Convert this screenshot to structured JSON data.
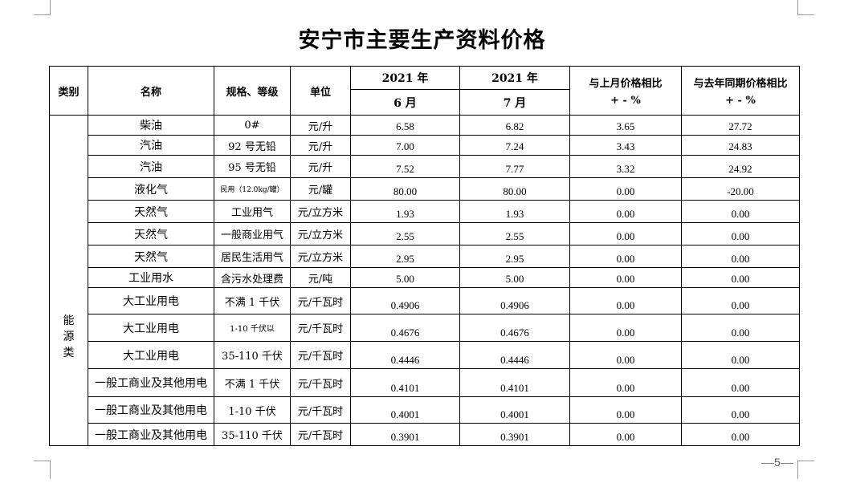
{
  "title": "安宁市主要生产资料价格",
  "headers": {
    "category": "类别",
    "name": "名称",
    "spec": "规格、等级",
    "unit": "单位",
    "prev_year": "2021 年",
    "prev_month": "6 月",
    "cur_year": "2021 年",
    "cur_month": "7 月",
    "mom_line1": "与上月价格相比",
    "mom_line2": "+ - %",
    "yoy_line1": "与去年同期价格相比",
    "yoy_line2": "+ - %"
  },
  "category": "能源类",
  "rows": [
    {
      "name": "柴油",
      "spec": "0#",
      "unit": "元/升",
      "prev": "6.58",
      "cur": "6.82",
      "mom": "3.65",
      "yoy": "27.72"
    },
    {
      "name": "汽油",
      "spec": "92 号无铅",
      "unit": "元/升",
      "prev": "7.00",
      "cur": "7.24",
      "mom": "3.43",
      "yoy": "24.83"
    },
    {
      "name": "汽油",
      "spec": "95 号无铅",
      "unit": "元/升",
      "prev": "7.52",
      "cur": "7.77",
      "mom": "3.32",
      "yoy": "24.92"
    },
    {
      "name": "液化气",
      "spec": "民用（12.0kg/罐）",
      "unit": "元/罐",
      "prev": "80.00",
      "cur": "80.00",
      "mom": "0.00",
      "yoy": "-20.00"
    },
    {
      "name": "天然气",
      "spec": "工业用气",
      "unit": "元/立方米",
      "prev": "1.93",
      "cur": "1.93",
      "mom": "0.00",
      "yoy": "0.00"
    },
    {
      "name": "天然气",
      "spec": "一般商业用气",
      "unit": "元/立方米",
      "prev": "2.55",
      "cur": "2.55",
      "mom": "0.00",
      "yoy": "0.00"
    },
    {
      "name": "天然气",
      "spec": "居民生活用气",
      "unit": "元/立方米",
      "prev": "2.95",
      "cur": "2.95",
      "mom": "0.00",
      "yoy": "0.00"
    },
    {
      "name": "工业用水",
      "spec": "含污水处理费",
      "unit": "元/吨",
      "prev": "5.00",
      "cur": "5.00",
      "mom": "0.00",
      "yoy": "0.00"
    },
    {
      "name": "大工业用电",
      "spec": "不满 1 千伏",
      "unit": "元/千瓦时",
      "prev": "0.4906",
      "cur": "0.4906",
      "mom": "0.00",
      "yoy": "0.00"
    },
    {
      "name": "大工业用电",
      "spec": "1-10 千伏以",
      "unit": "元/千瓦时",
      "prev": "0.4676",
      "cur": "0.4676",
      "mom": "0.00",
      "yoy": "0.00"
    },
    {
      "name": "大工业用电",
      "spec": "35-110 千伏",
      "unit": "元/千瓦时",
      "prev": "0.4446",
      "cur": "0.4446",
      "mom": "0.00",
      "yoy": "0.00"
    },
    {
      "name": "一般工商业及其他用电",
      "spec": "不满 1 千伏",
      "unit": "元/千瓦时",
      "prev": "0.4101",
      "cur": "0.4101",
      "mom": "0.00",
      "yoy": "0.00"
    },
    {
      "name": "一般工商业及其他用电",
      "spec": "1-10 千伏",
      "unit": "元/千瓦时",
      "prev": "0.4001",
      "cur": "0.4001",
      "mom": "0.00",
      "yoy": "0.00"
    },
    {
      "name": "一般工商业及其他用电",
      "spec": "35-110 千伏",
      "unit": "元/千瓦时",
      "prev": "0.3901",
      "cur": "0.3901",
      "mom": "0.00",
      "yoy": "0.00"
    }
  ],
  "page_number": "5"
}
